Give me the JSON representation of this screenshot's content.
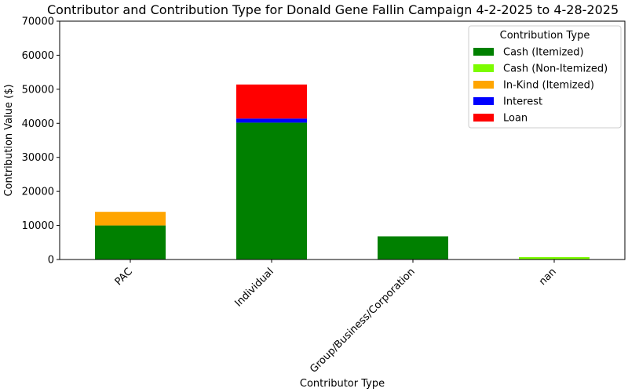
{
  "chart_data": {
    "type": "bar",
    "stacked": true,
    "title": "Contributor and Contribution Type for Donald Gene Fallin Campaign 4-2-2025 to 4-28-2025",
    "xlabel": "Contributor Type",
    "ylabel": "Contribution Value ($)",
    "categories": [
      "PAC",
      "Individual",
      "Group/Business/Corporation",
      "nan"
    ],
    "ylim": [
      0,
      70000
    ],
    "yticks": [
      0,
      10000,
      20000,
      30000,
      40000,
      50000,
      60000,
      70000
    ],
    "legend": {
      "title": "Contribution Type",
      "position": "top-right"
    },
    "grid": false,
    "series": [
      {
        "name": "Cash (Itemized)",
        "color": "#008000",
        "values": [
          10000,
          40200,
          6800,
          0
        ]
      },
      {
        "name": "Cash (Non-Itemized)",
        "color": "#7cfc00",
        "values": [
          0,
          0,
          0,
          700
        ]
      },
      {
        "name": "In-Kind (Itemized)",
        "color": "#ffa500",
        "values": [
          4000,
          0,
          0,
          0
        ]
      },
      {
        "name": "Interest",
        "color": "#0000ff",
        "values": [
          0,
          1200,
          0,
          0
        ]
      },
      {
        "name": "Loan",
        "color": "#ff0000",
        "values": [
          0,
          10000,
          0,
          0
        ]
      }
    ]
  }
}
